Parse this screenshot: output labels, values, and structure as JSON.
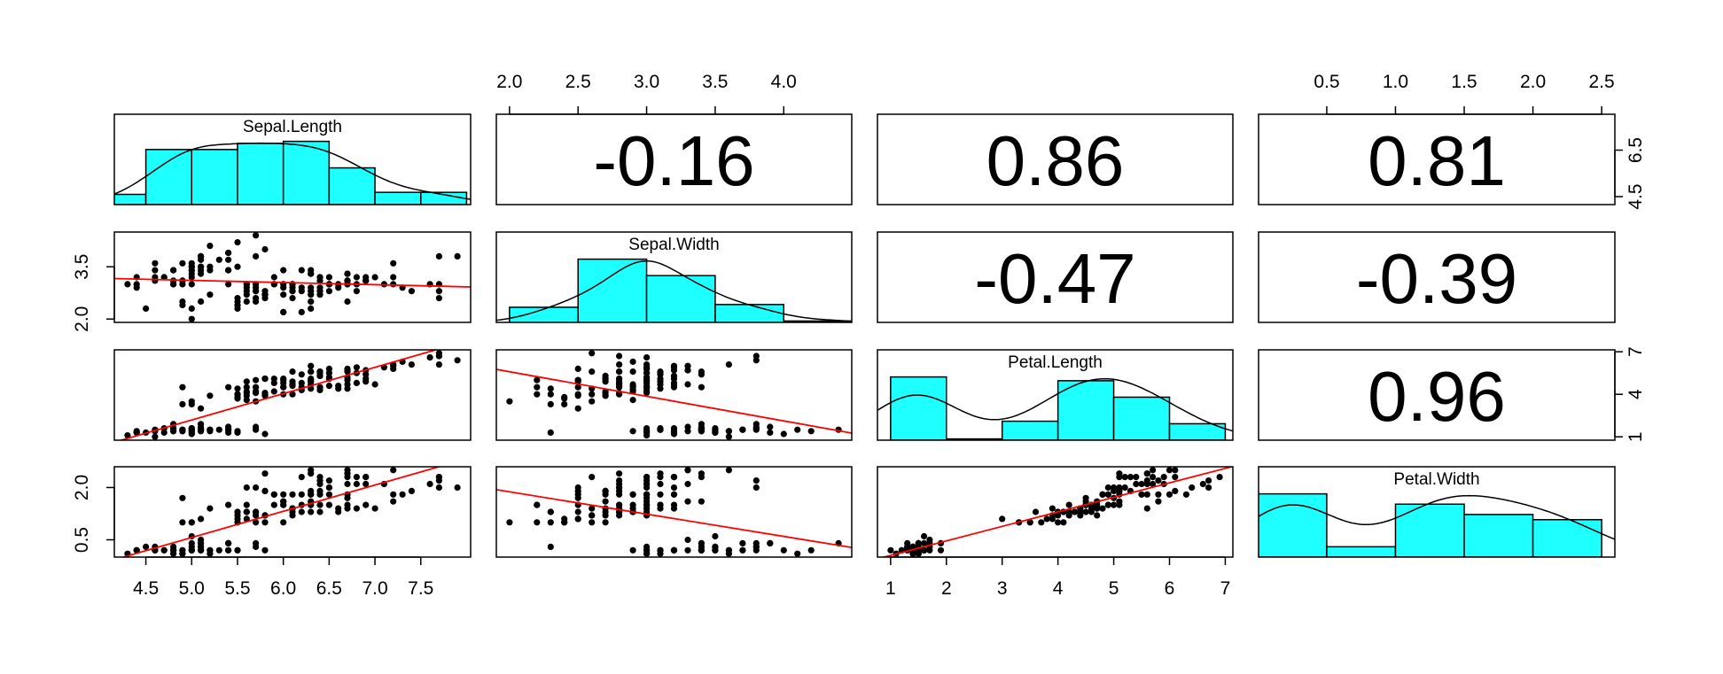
{
  "colors": {
    "hist_fill": "#1EFFFF",
    "regression_line": "#FF0000",
    "points": "#000000",
    "density_line": "#000000",
    "panel_border": "#000000"
  },
  "chart_data": {
    "type": "scatter",
    "layout": "pairs-matrix",
    "variables": [
      "Sepal.Length",
      "Sepal.Width",
      "Petal.Length",
      "Petal.Width"
    ],
    "grid": false,
    "ranges": {
      "Sepal.Length": [
        4.3,
        7.9
      ],
      "Sepal.Width": [
        2.0,
        4.4
      ],
      "Petal.Length": [
        1.0,
        6.9
      ],
      "Petal.Width": [
        0.1,
        2.5
      ]
    },
    "axis_ticks": {
      "Sepal.Length": {
        "bottom": [
          "4.5",
          "5.0",
          "5.5",
          "6.0",
          "6.5",
          "7.0",
          "7.5"
        ],
        "right": [
          "4.5",
          "6.5"
        ]
      },
      "Sepal.Width": {
        "top": [
          "2.0",
          "2.5",
          "3.0",
          "3.5",
          "4.0"
        ],
        "left": [
          "2.0",
          "3.5"
        ]
      },
      "Petal.Length": {
        "bottom": [
          "1",
          "2",
          "3",
          "4",
          "5",
          "6",
          "7"
        ],
        "right": [
          "1",
          "4",
          "7"
        ]
      },
      "Petal.Width": {
        "top": [
          "0.5",
          "1.0",
          "1.5",
          "2.0",
          "2.5"
        ],
        "left": [
          "0.5",
          "2.0"
        ]
      }
    },
    "correlations": [
      {
        "row": "Sepal.Length",
        "col": "Sepal.Width",
        "label": "-0.16"
      },
      {
        "row": "Sepal.Length",
        "col": "Petal.Length",
        "label": "0.86"
      },
      {
        "row": "Sepal.Length",
        "col": "Petal.Width",
        "label": "0.81"
      },
      {
        "row": "Sepal.Width",
        "col": "Petal.Length",
        "label": "-0.47"
      },
      {
        "row": "Sepal.Width",
        "col": "Petal.Width",
        "label": "-0.39"
      },
      {
        "row": "Petal.Length",
        "col": "Petal.Width",
        "label": "0.96"
      }
    ],
    "histograms": {
      "Sepal.Length": {
        "breaks": [
          4.0,
          4.5,
          5.0,
          5.5,
          6.0,
          6.5,
          7.0,
          7.5,
          8.0
        ],
        "counts": [
          5,
          27,
          27,
          30,
          31,
          18,
          6,
          6
        ]
      },
      "Sepal.Width": {
        "breaks": [
          2.0,
          2.5,
          3.0,
          3.5,
          4.0,
          4.5
        ],
        "counts": [
          11,
          46,
          34,
          13,
          1
        ]
      },
      "Petal.Length": {
        "breaks": [
          1,
          2,
          3,
          4,
          5,
          6,
          7
        ],
        "counts": [
          50,
          1,
          15,
          47,
          34,
          13
        ]
      },
      "Petal.Width": {
        "breaks": [
          0.0,
          0.5,
          1.0,
          1.5,
          2.0,
          2.5
        ],
        "counts": [
          49,
          8,
          41,
          33,
          29
        ]
      }
    },
    "regressions": {
      "Sepal.Width~Sepal.Length": {
        "intercept": 3.419,
        "slope": -0.0619
      },
      "Petal.Length~Sepal.Length": {
        "intercept": -7.101,
        "slope": 1.858
      },
      "Petal.Length~Sepal.Width": {
        "intercept": 9.063,
        "slope": -1.735
      },
      "Petal.Width~Sepal.Length": {
        "intercept": -3.2,
        "slope": 0.753
      },
      "Petal.Width~Sepal.Width": {
        "intercept": 3.157,
        "slope": -0.64
      },
      "Petal.Width~Petal.Length": {
        "intercept": -0.363,
        "slope": 0.416
      }
    },
    "points": [
      [
        5.1,
        3.5,
        1.4,
        0.2
      ],
      [
        4.9,
        3.0,
        1.4,
        0.2
      ],
      [
        4.7,
        3.2,
        1.3,
        0.2
      ],
      [
        4.6,
        3.1,
        1.5,
        0.2
      ],
      [
        5.0,
        3.6,
        1.4,
        0.2
      ],
      [
        5.4,
        3.9,
        1.7,
        0.4
      ],
      [
        4.6,
        3.4,
        1.4,
        0.3
      ],
      [
        5.0,
        3.4,
        1.5,
        0.2
      ],
      [
        4.4,
        2.9,
        1.4,
        0.2
      ],
      [
        4.9,
        3.1,
        1.5,
        0.1
      ],
      [
        5.4,
        3.7,
        1.5,
        0.2
      ],
      [
        4.8,
        3.4,
        1.6,
        0.2
      ],
      [
        4.8,
        3.0,
        1.4,
        0.1
      ],
      [
        4.3,
        3.0,
        1.1,
        0.1
      ],
      [
        5.8,
        4.0,
        1.2,
        0.2
      ],
      [
        5.7,
        4.4,
        1.5,
        0.4
      ],
      [
        5.4,
        3.9,
        1.3,
        0.4
      ],
      [
        5.1,
        3.5,
        1.4,
        0.3
      ],
      [
        5.7,
        3.8,
        1.7,
        0.3
      ],
      [
        5.1,
        3.8,
        1.5,
        0.3
      ],
      [
        5.4,
        3.4,
        1.7,
        0.2
      ],
      [
        5.1,
        3.7,
        1.5,
        0.4
      ],
      [
        4.6,
        3.6,
        1.0,
        0.2
      ],
      [
        5.1,
        3.3,
        1.7,
        0.5
      ],
      [
        4.8,
        3.4,
        1.9,
        0.2
      ],
      [
        5.0,
        3.0,
        1.6,
        0.2
      ],
      [
        5.0,
        3.4,
        1.6,
        0.4
      ],
      [
        5.2,
        3.5,
        1.5,
        0.2
      ],
      [
        5.2,
        3.4,
        1.4,
        0.2
      ],
      [
        4.7,
        3.2,
        1.6,
        0.2
      ],
      [
        4.8,
        3.1,
        1.6,
        0.2
      ],
      [
        5.4,
        3.4,
        1.5,
        0.4
      ],
      [
        5.2,
        4.1,
        1.5,
        0.1
      ],
      [
        5.5,
        4.2,
        1.4,
        0.2
      ],
      [
        4.9,
        3.1,
        1.5,
        0.2
      ],
      [
        5.0,
        3.2,
        1.2,
        0.2
      ],
      [
        5.5,
        3.5,
        1.3,
        0.2
      ],
      [
        4.9,
        3.6,
        1.4,
        0.1
      ],
      [
        4.4,
        3.0,
        1.3,
        0.2
      ],
      [
        5.1,
        3.4,
        1.5,
        0.2
      ],
      [
        5.0,
        3.5,
        1.3,
        0.3
      ],
      [
        4.5,
        2.3,
        1.3,
        0.3
      ],
      [
        4.4,
        3.2,
        1.3,
        0.2
      ],
      [
        5.0,
        3.5,
        1.6,
        0.6
      ],
      [
        5.1,
        3.8,
        1.9,
        0.4
      ],
      [
        4.8,
        3.0,
        1.4,
        0.3
      ],
      [
        5.1,
        3.8,
        1.6,
        0.2
      ],
      [
        4.6,
        3.2,
        1.4,
        0.2
      ],
      [
        5.3,
        3.7,
        1.5,
        0.2
      ],
      [
        5.0,
        3.3,
        1.4,
        0.2
      ],
      [
        7.0,
        3.2,
        4.7,
        1.4
      ],
      [
        6.4,
        3.2,
        4.5,
        1.5
      ],
      [
        6.9,
        3.1,
        4.9,
        1.5
      ],
      [
        5.5,
        2.3,
        4.0,
        1.3
      ],
      [
        6.5,
        2.8,
        4.6,
        1.5
      ],
      [
        5.7,
        2.8,
        4.5,
        1.3
      ],
      [
        6.3,
        3.3,
        4.7,
        1.6
      ],
      [
        4.9,
        2.4,
        3.3,
        1.0
      ],
      [
        6.6,
        2.9,
        4.6,
        1.3
      ],
      [
        5.2,
        2.7,
        3.9,
        1.4
      ],
      [
        5.0,
        2.0,
        3.5,
        1.0
      ],
      [
        5.9,
        3.0,
        4.2,
        1.5
      ],
      [
        6.0,
        2.2,
        4.0,
        1.0
      ],
      [
        6.1,
        2.9,
        4.7,
        1.4
      ],
      [
        5.6,
        2.9,
        3.6,
        1.3
      ],
      [
        6.7,
        3.1,
        4.4,
        1.4
      ],
      [
        5.6,
        3.0,
        4.5,
        1.5
      ],
      [
        5.8,
        2.7,
        4.1,
        1.0
      ],
      [
        6.2,
        2.2,
        4.5,
        1.5
      ],
      [
        5.6,
        2.5,
        3.9,
        1.1
      ],
      [
        5.9,
        3.2,
        4.8,
        1.8
      ],
      [
        6.1,
        2.8,
        4.0,
        1.3
      ],
      [
        6.3,
        2.5,
        4.9,
        1.5
      ],
      [
        6.1,
        2.8,
        4.7,
        1.2
      ],
      [
        6.4,
        2.9,
        4.3,
        1.3
      ],
      [
        6.6,
        3.0,
        4.4,
        1.4
      ],
      [
        6.8,
        2.8,
        4.8,
        1.4
      ],
      [
        6.7,
        3.0,
        5.0,
        1.7
      ],
      [
        6.0,
        2.9,
        4.5,
        1.5
      ],
      [
        5.7,
        2.6,
        3.5,
        1.0
      ],
      [
        5.5,
        2.4,
        3.8,
        1.1
      ],
      [
        5.5,
        2.4,
        3.7,
        1.0
      ],
      [
        5.8,
        2.7,
        3.9,
        1.2
      ],
      [
        6.0,
        2.7,
        5.1,
        1.6
      ],
      [
        5.4,
        3.0,
        4.5,
        1.5
      ],
      [
        6.0,
        3.4,
        4.5,
        1.6
      ],
      [
        6.7,
        3.1,
        4.7,
        1.5
      ],
      [
        6.3,
        2.3,
        4.4,
        1.3
      ],
      [
        5.6,
        3.0,
        4.1,
        1.3
      ],
      [
        5.5,
        2.5,
        4.0,
        1.3
      ],
      [
        5.5,
        2.6,
        4.4,
        1.2
      ],
      [
        6.1,
        3.0,
        4.6,
        1.4
      ],
      [
        5.8,
        2.6,
        4.0,
        1.2
      ],
      [
        5.0,
        2.3,
        3.3,
        1.0
      ],
      [
        5.6,
        2.7,
        4.2,
        1.3
      ],
      [
        5.7,
        3.0,
        4.2,
        1.2
      ],
      [
        5.7,
        2.9,
        4.2,
        1.3
      ],
      [
        6.2,
        2.9,
        4.3,
        1.3
      ],
      [
        5.1,
        2.5,
        3.0,
        1.1
      ],
      [
        5.7,
        2.8,
        4.1,
        1.3
      ],
      [
        6.3,
        3.3,
        6.0,
        2.5
      ],
      [
        5.8,
        2.7,
        5.1,
        1.9
      ],
      [
        7.1,
        3.0,
        5.9,
        2.1
      ],
      [
        6.3,
        2.9,
        5.6,
        1.8
      ],
      [
        6.5,
        3.0,
        5.8,
        2.2
      ],
      [
        7.6,
        3.0,
        6.6,
        2.1
      ],
      [
        4.9,
        2.5,
        4.5,
        1.7
      ],
      [
        7.3,
        2.9,
        6.3,
        1.8
      ],
      [
        6.7,
        2.5,
        5.8,
        1.8
      ],
      [
        7.2,
        3.6,
        6.1,
        2.5
      ],
      [
        6.5,
        3.2,
        5.1,
        2.0
      ],
      [
        6.4,
        2.7,
        5.3,
        1.9
      ],
      [
        6.8,
        3.0,
        5.5,
        2.1
      ],
      [
        5.7,
        2.5,
        5.0,
        2.0
      ],
      [
        5.8,
        2.8,
        5.1,
        2.4
      ],
      [
        6.4,
        3.2,
        5.3,
        2.3
      ],
      [
        6.5,
        3.0,
        5.5,
        1.8
      ],
      [
        7.7,
        3.8,
        6.7,
        2.2
      ],
      [
        7.7,
        2.6,
        6.9,
        2.3
      ],
      [
        6.0,
        2.2,
        5.0,
        1.5
      ],
      [
        6.9,
        3.2,
        5.7,
        2.3
      ],
      [
        5.6,
        2.8,
        4.9,
        2.0
      ],
      [
        7.7,
        2.8,
        6.7,
        2.0
      ],
      [
        6.3,
        2.7,
        4.9,
        1.8
      ],
      [
        6.7,
        3.3,
        5.7,
        2.1
      ],
      [
        7.2,
        3.2,
        6.0,
        1.8
      ],
      [
        6.2,
        2.8,
        4.8,
        1.8
      ],
      [
        6.1,
        3.0,
        4.9,
        1.8
      ],
      [
        6.4,
        2.8,
        5.6,
        2.1
      ],
      [
        7.2,
        3.0,
        5.8,
        1.6
      ],
      [
        7.4,
        2.8,
        6.1,
        1.9
      ],
      [
        7.9,
        3.8,
        6.4,
        2.0
      ],
      [
        6.4,
        2.8,
        5.6,
        2.2
      ],
      [
        6.3,
        2.8,
        5.1,
        1.5
      ],
      [
        6.1,
        2.6,
        5.6,
        1.4
      ],
      [
        7.7,
        3.0,
        6.1,
        2.3
      ],
      [
        6.3,
        3.4,
        5.6,
        2.4
      ],
      [
        6.4,
        3.1,
        5.5,
        1.8
      ],
      [
        6.0,
        3.0,
        4.8,
        1.8
      ],
      [
        6.9,
        3.1,
        5.4,
        2.1
      ],
      [
        6.7,
        3.1,
        5.6,
        2.4
      ],
      [
        6.9,
        3.1,
        5.1,
        2.3
      ],
      [
        5.8,
        2.7,
        5.1,
        1.9
      ],
      [
        6.8,
        3.2,
        5.9,
        2.3
      ],
      [
        6.7,
        3.3,
        5.7,
        2.5
      ],
      [
        6.7,
        3.0,
        5.2,
        2.3
      ],
      [
        6.3,
        2.5,
        5.0,
        1.9
      ],
      [
        6.5,
        3.0,
        5.2,
        2.0
      ],
      [
        6.2,
        3.4,
        5.4,
        2.3
      ],
      [
        5.9,
        3.0,
        5.1,
        1.8
      ]
    ]
  }
}
